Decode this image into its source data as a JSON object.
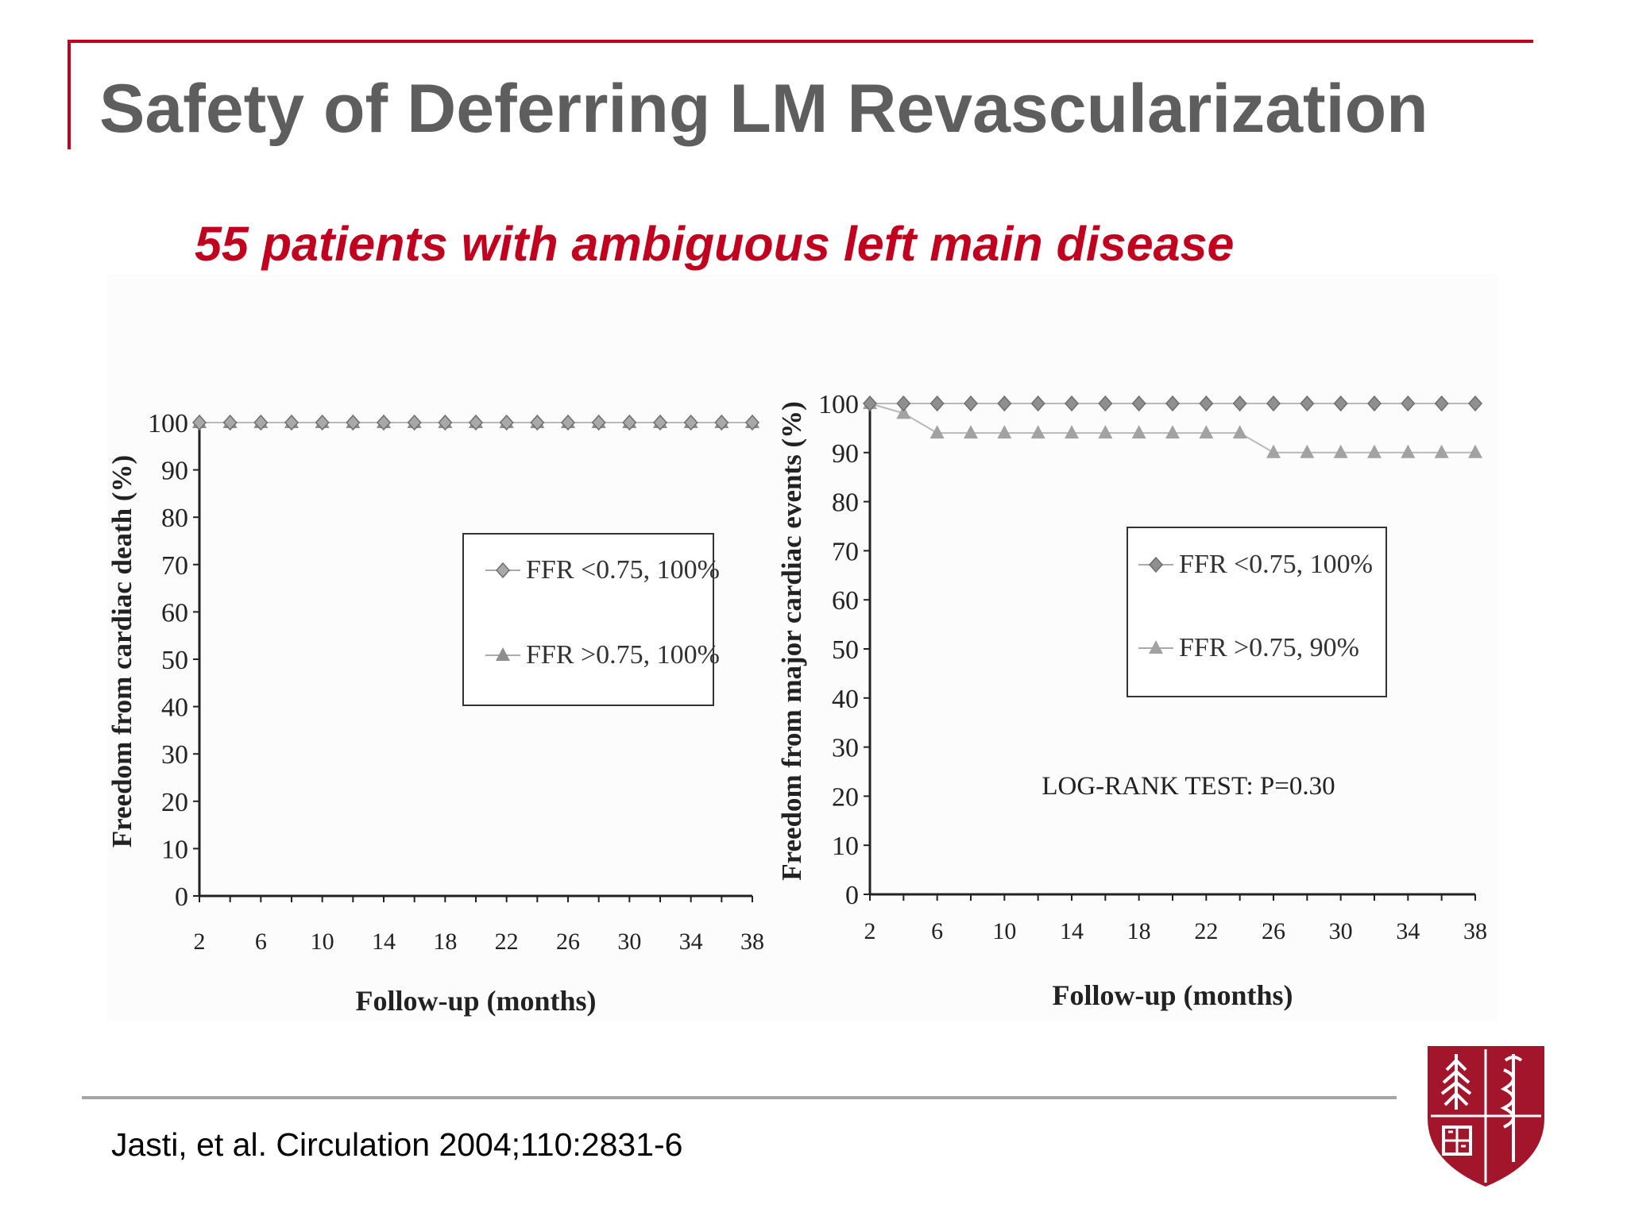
{
  "slide": {
    "title": "Safety of Deferring LM Revascularization",
    "subtitle": "55 patients with ambiguous left main disease",
    "citation": "Jasti, et al. Circulation 2004;110:2831-6",
    "accent_color": "#c1001f",
    "title_color": "#5e5e5e",
    "logo_icon": "stanford-medicine-shield-icon"
  },
  "chart_data": [
    {
      "type": "line",
      "ylabel": "Freedom from cardiac death  (%)",
      "xlabel": "Follow-up (months)",
      "ylim": [
        0,
        100
      ],
      "yticks": [
        "0",
        "10",
        "20",
        "30",
        "40",
        "50",
        "60",
        "70",
        "80",
        "90",
        "100"
      ],
      "xticks": [
        "2",
        "6",
        "10",
        "14",
        "18",
        "22",
        "26",
        "30",
        "34",
        "38"
      ],
      "legend_position": "center-right",
      "x": [
        2,
        4,
        6,
        8,
        10,
        12,
        14,
        16,
        18,
        20,
        22,
        24,
        26,
        28,
        30,
        32,
        34,
        36,
        38
      ],
      "series": [
        {
          "name": "FFR <0.75, 100%",
          "marker": "diamond",
          "values": [
            100,
            100,
            100,
            100,
            100,
            100,
            100,
            100,
            100,
            100,
            100,
            100,
            100,
            100,
            100,
            100,
            100,
            100,
            100
          ]
        },
        {
          "name": "FFR >0.75, 100%",
          "marker": "triangle",
          "values": [
            100,
            100,
            100,
            100,
            100,
            100,
            100,
            100,
            100,
            100,
            100,
            100,
            100,
            100,
            100,
            100,
            100,
            100,
            100
          ]
        }
      ]
    },
    {
      "type": "line",
      "ylabel": "Freedom from major cardiac events (%)",
      "xlabel": "Follow-up (months)",
      "ylim": [
        0,
        100
      ],
      "yticks": [
        "0",
        "10",
        "20",
        "30",
        "40",
        "50",
        "60",
        "70",
        "80",
        "90",
        "100"
      ],
      "xticks": [
        "2",
        "6",
        "10",
        "14",
        "18",
        "22",
        "26",
        "30",
        "34",
        "38"
      ],
      "legend_position": "upper-right",
      "annotation": "LOG-RANK TEST: P=0.30",
      "x": [
        2,
        4,
        6,
        8,
        10,
        12,
        14,
        16,
        18,
        20,
        22,
        24,
        26,
        28,
        30,
        32,
        34,
        36,
        38
      ],
      "series": [
        {
          "name": "FFR <0.75, 100%",
          "marker": "diamond",
          "values": [
            100,
            100,
            100,
            100,
            100,
            100,
            100,
            100,
            100,
            100,
            100,
            100,
            100,
            100,
            100,
            100,
            100,
            100,
            100
          ]
        },
        {
          "name": "FFR >0.75, 90%",
          "marker": "triangle",
          "values": [
            100,
            98,
            94,
            94,
            94,
            94,
            94,
            94,
            94,
            94,
            94,
            94,
            90,
            90,
            90,
            90,
            90,
            90,
            90
          ]
        }
      ]
    }
  ]
}
